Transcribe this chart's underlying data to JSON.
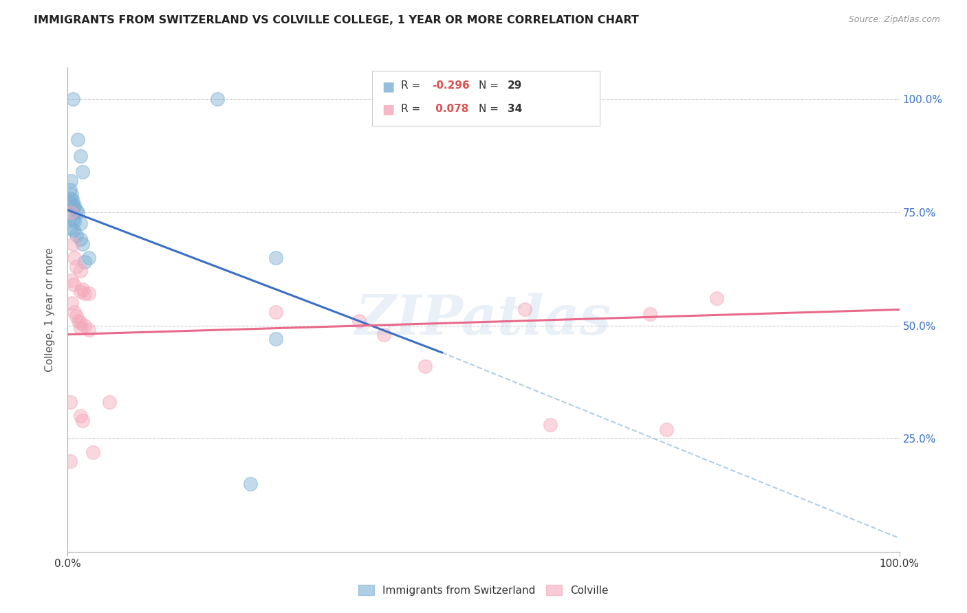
{
  "title": "IMMIGRANTS FROM SWITZERLAND VS COLVILLE COLLEGE, 1 YEAR OR MORE CORRELATION CHART",
  "source": "Source: ZipAtlas.com",
  "ylabel": "College, 1 year or more",
  "legend_blue_r": "-0.296",
  "legend_blue_n": "29",
  "legend_pink_r": "0.078",
  "legend_pink_n": "34",
  "legend_label_blue": "Immigrants from Switzerland",
  "legend_label_pink": "Colville",
  "blue_color": "#7BAFD4",
  "pink_color": "#F4A7B9",
  "blue_line_color": "#3A6FC7",
  "pink_line_color": "#E8698A",
  "blue_line_solid": [
    [
      0.0,
      75.5
    ],
    [
      45.0,
      44.0
    ]
  ],
  "blue_line_dashed": [
    [
      45.0,
      44.0
    ],
    [
      100.0,
      3.0
    ]
  ],
  "pink_line": [
    [
      0.0,
      48.0
    ],
    [
      100.0,
      53.5
    ]
  ],
  "blue_scatter": [
    [
      0.6,
      100.0
    ],
    [
      1.2,
      91.0
    ],
    [
      1.5,
      87.5
    ],
    [
      1.8,
      84.0
    ],
    [
      0.4,
      82.0
    ],
    [
      0.3,
      80.0
    ],
    [
      0.5,
      79.0
    ],
    [
      0.4,
      78.0
    ],
    [
      0.6,
      77.5
    ],
    [
      0.5,
      77.0
    ],
    [
      0.8,
      76.5
    ],
    [
      0.7,
      76.0
    ],
    [
      1.0,
      75.5
    ],
    [
      1.2,
      75.0
    ],
    [
      0.4,
      74.5
    ],
    [
      0.6,
      73.5
    ],
    [
      0.8,
      73.0
    ],
    [
      1.5,
      72.5
    ],
    [
      0.4,
      71.5
    ],
    [
      0.7,
      71.0
    ],
    [
      1.0,
      70.0
    ],
    [
      1.5,
      69.0
    ],
    [
      1.8,
      68.0
    ],
    [
      2.5,
      65.0
    ],
    [
      2.0,
      64.0
    ],
    [
      18.0,
      100.0
    ],
    [
      25.0,
      65.0
    ],
    [
      25.0,
      47.0
    ],
    [
      22.0,
      15.0
    ]
  ],
  "pink_scatter": [
    [
      0.4,
      75.0
    ],
    [
      0.6,
      68.0
    ],
    [
      0.8,
      65.0
    ],
    [
      1.0,
      63.0
    ],
    [
      1.5,
      62.0
    ],
    [
      0.5,
      60.0
    ],
    [
      0.7,
      59.0
    ],
    [
      1.8,
      58.0
    ],
    [
      1.5,
      57.5
    ],
    [
      2.0,
      57.0
    ],
    [
      2.5,
      57.0
    ],
    [
      0.5,
      55.0
    ],
    [
      0.8,
      53.0
    ],
    [
      1.0,
      52.0
    ],
    [
      1.3,
      51.0
    ],
    [
      1.5,
      50.5
    ],
    [
      2.0,
      50.0
    ],
    [
      1.5,
      49.5
    ],
    [
      2.5,
      49.0
    ],
    [
      25.0,
      53.0
    ],
    [
      35.0,
      51.0
    ],
    [
      55.0,
      53.5
    ],
    [
      70.0,
      52.5
    ],
    [
      78.0,
      56.0
    ],
    [
      0.3,
      33.0
    ],
    [
      1.5,
      30.0
    ],
    [
      1.8,
      29.0
    ],
    [
      3.0,
      22.0
    ],
    [
      5.0,
      33.0
    ],
    [
      38.0,
      48.0
    ],
    [
      43.0,
      41.0
    ],
    [
      58.0,
      28.0
    ],
    [
      72.0,
      27.0
    ],
    [
      0.3,
      20.0
    ]
  ],
  "xlim": [
    0.0,
    100.0
  ],
  "ylim": [
    0.0,
    107.0
  ],
  "watermark": "ZIPatlas",
  "background_color": "#ffffff"
}
